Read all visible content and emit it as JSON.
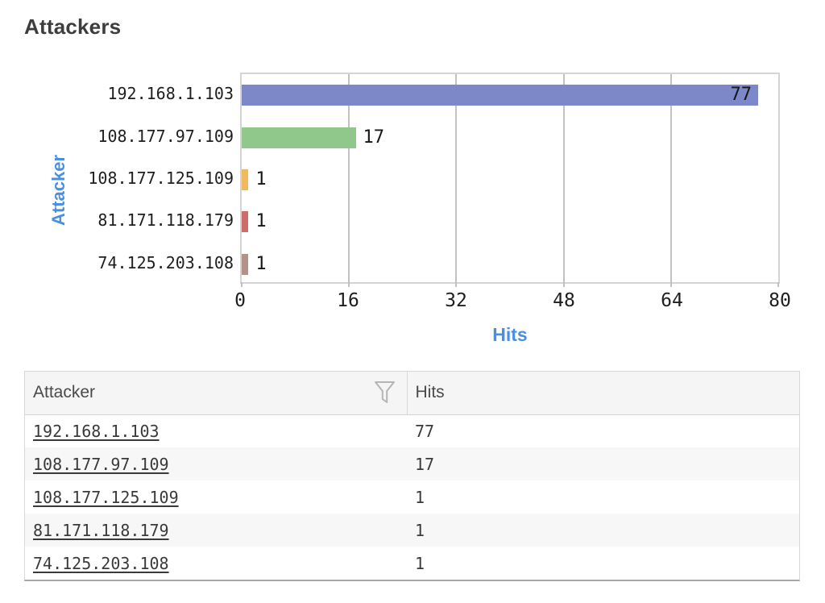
{
  "page": {
    "title": "Attackers"
  },
  "chart_data": {
    "type": "bar",
    "orientation": "horizontal",
    "categories": [
      "192.168.1.103",
      "108.177.97.109",
      "108.177.125.109",
      "81.171.118.179",
      "74.125.203.108"
    ],
    "values": [
      77,
      17,
      1,
      1,
      1
    ],
    "value_labels": [
      "77",
      "17",
      "1",
      "1",
      "1"
    ],
    "bar_colors": [
      "#7C88C8",
      "#90C88B",
      "#F2B95F",
      "#CC6C6B",
      "#B3928A"
    ],
    "xlabel": "Hits",
    "ylabel": "Attacker",
    "xlim": [
      0,
      80
    ],
    "xticks": [
      0,
      16,
      32,
      48,
      64,
      80
    ],
    "grid": true,
    "legend": false,
    "axis_label_color": "#4a90e2"
  },
  "table": {
    "headers": {
      "attacker": "Attacker",
      "hits": "Hits"
    },
    "rows": [
      {
        "attacker": "192.168.1.103",
        "hits": "77"
      },
      {
        "attacker": "108.177.97.109",
        "hits": "17"
      },
      {
        "attacker": "108.177.125.109",
        "hits": "1"
      },
      {
        "attacker": "81.171.118.179",
        "hits": "1"
      },
      {
        "attacker": "74.125.203.108",
        "hits": "1"
      }
    ]
  },
  "colors": {
    "accent_blue": "#4a90e2",
    "gridline": "#c2c2c2",
    "header_bg": "#f5f5f5",
    "zebra_row": "#f7f7f7"
  }
}
